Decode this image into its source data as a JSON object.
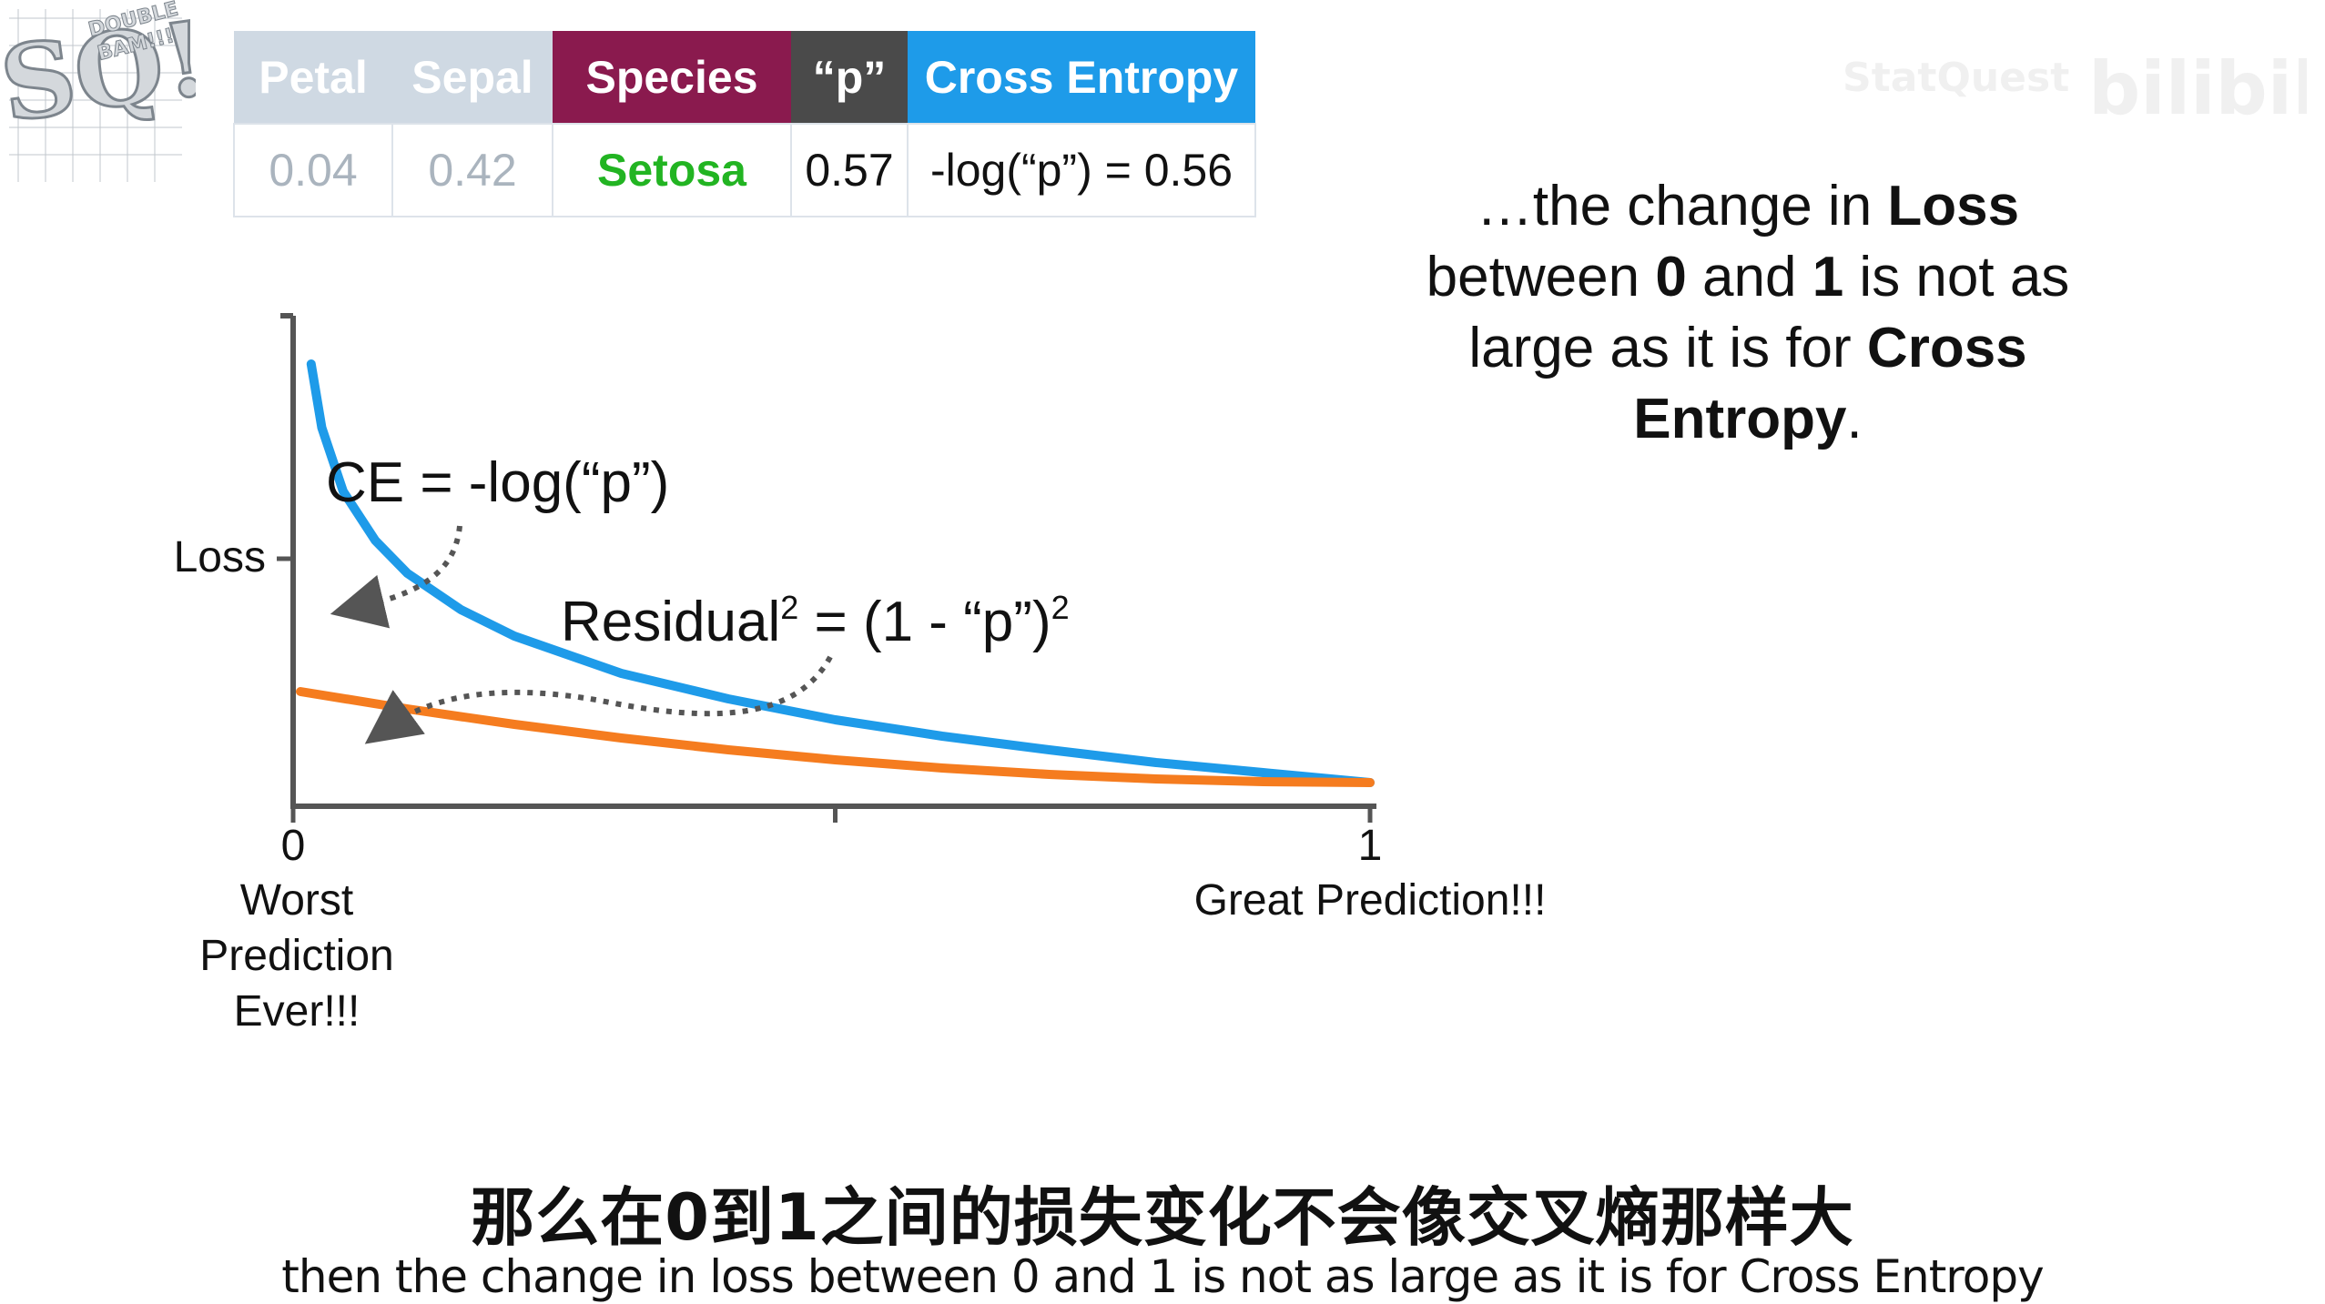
{
  "logo": {
    "text_big": "SQ!",
    "text_small": "DOUBLE BAM!!!",
    "icon": "statquest-logo"
  },
  "watermark": {
    "text": "bilibili",
    "icon": "bilibili-logo"
  },
  "table": {
    "headers": {
      "petal": "Petal",
      "sepal": "Sepal",
      "species": "Species",
      "p": "“p”",
      "cross_entropy": "Cross Entropy"
    },
    "row": {
      "petal": "0.04",
      "sepal": "0.42",
      "species": "Setosa",
      "p": "0.57",
      "cross_entropy": "-log(“p”) = 0.56"
    },
    "colors": {
      "species_header": "#8a1a4e",
      "p_header": "#4a4a4a",
      "ce_header": "#1e9be9",
      "species_value": "#22b422"
    }
  },
  "explanation": {
    "line1_pre": "…the change in ",
    "line1_bold": "Loss",
    "line2_pre": "between ",
    "line2_b1": "0",
    "line2_mid": " and ",
    "line2_b2": "1",
    "line2_post": " is not as",
    "line3_pre": "large as it is for ",
    "line3_bold": "Cross",
    "line4_bold": "Entropy",
    "line4_post": "."
  },
  "chart_data": {
    "type": "line",
    "ylabel": "Loss",
    "xlim": [
      0,
      1
    ],
    "x_ticks": [
      {
        "value": 0,
        "label": "0"
      },
      {
        "value": 0.5,
        "label": ""
      },
      {
        "value": 1,
        "label": "1"
      }
    ],
    "x_tick_captions": {
      "left": [
        "Worst",
        "Prediction",
        "Ever!!!"
      ],
      "right": "Great Prediction!!!"
    },
    "annotations": {
      "ce_formula": "CE = -log(“p”)",
      "residual_formula_base": "Residual",
      "residual_formula_mid": " = (1 - “p”)",
      "superscript": "2"
    },
    "series": [
      {
        "name": "CE = -log(“p”)",
        "color": "#1e9be9",
        "x": [
          0.01,
          0.02,
          0.04,
          0.07,
          0.1,
          0.15,
          0.2,
          0.3,
          0.4,
          0.5,
          0.6,
          0.7,
          0.8,
          0.9,
          1.0
        ],
        "y": [
          4.6,
          3.9,
          3.2,
          2.66,
          2.3,
          1.9,
          1.61,
          1.2,
          0.92,
          0.69,
          0.51,
          0.36,
          0.22,
          0.11,
          0.0
        ]
      },
      {
        "name": "Residual² = (1 - “p”)²",
        "color": "#f57c1f",
        "x": [
          0,
          0.1,
          0.2,
          0.3,
          0.4,
          0.5,
          0.6,
          0.7,
          0.8,
          0.9,
          1.0
        ],
        "y": [
          1.0,
          0.81,
          0.64,
          0.49,
          0.36,
          0.25,
          0.16,
          0.09,
          0.04,
          0.01,
          0.0
        ]
      }
    ]
  },
  "subtitles": {
    "zh": "那么在0到1之间的损失变化不会像交叉熵那样大",
    "en": "then the change in loss between 0 and 1 is not as large as it is for Cross Entropy"
  }
}
